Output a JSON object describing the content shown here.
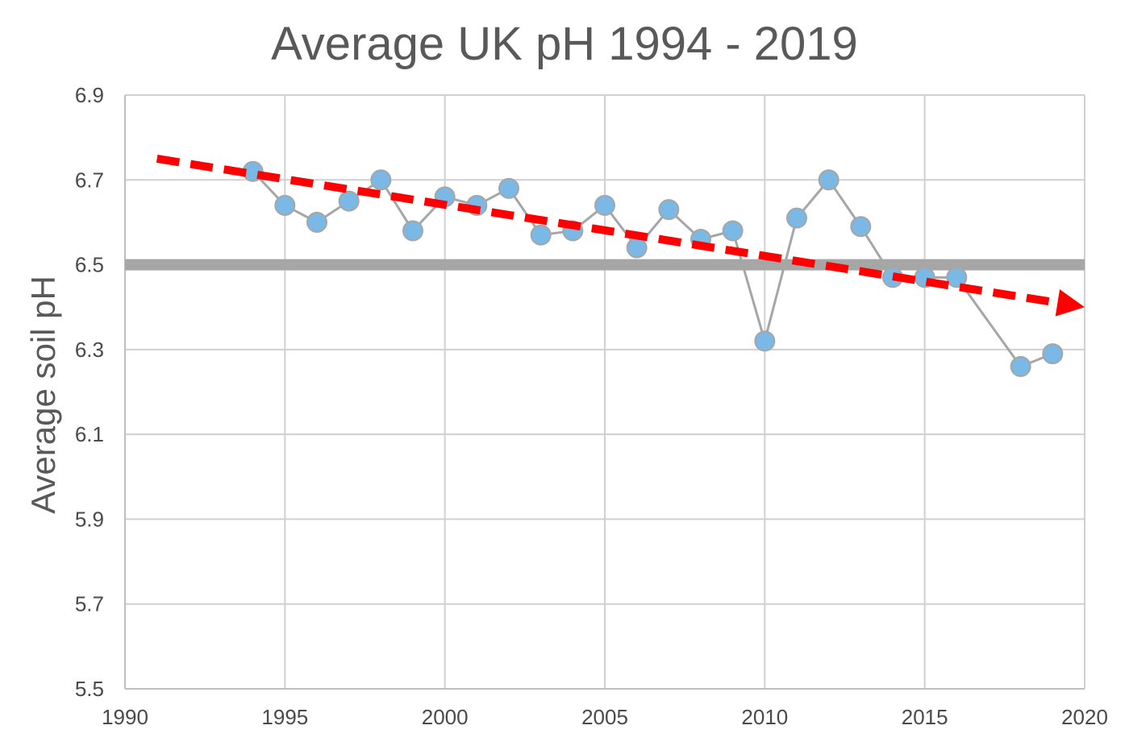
{
  "chart_data": {
    "type": "scatter",
    "title": "Average UK pH 1994 - 2019",
    "xlabel": "",
    "ylabel": "Average soil pH",
    "xlim": [
      1990,
      2020
    ],
    "ylim": [
      5.5,
      6.9
    ],
    "x_ticks": [
      "1990",
      "1995",
      "2000",
      "2005",
      "2010",
      "2015",
      "2020"
    ],
    "y_ticks": [
      "5.5",
      "5.7",
      "5.9",
      "6.1",
      "6.3",
      "6.5",
      "6.7",
      "6.9"
    ],
    "grid": true,
    "reference_line": {
      "y": 6.5,
      "color": "#a6a6a6"
    },
    "trend_line": {
      "x": [
        1991,
        2020
      ],
      "y": [
        6.75,
        6.4
      ],
      "color": "#ff0000",
      "style": "dashed-arrow"
    },
    "series": [
      {
        "x": [
          1994,
          1995,
          1996,
          1997,
          1998,
          1999,
          2000,
          2001,
          2002,
          2003,
          2004,
          2005,
          2006,
          2007,
          2008,
          2009,
          2010,
          2011,
          2012,
          2013,
          2014,
          2015,
          2016,
          2018,
          2019
        ],
        "y": [
          6.72,
          6.64,
          6.6,
          6.65,
          6.7,
          6.58,
          6.66,
          6.64,
          6.68,
          6.57,
          6.58,
          6.64,
          6.54,
          6.63,
          6.56,
          6.58,
          6.32,
          6.61,
          6.7,
          6.59,
          6.47,
          6.47,
          6.47,
          6.26,
          6.29
        ],
        "marker_color": "#7ab8e6",
        "line_color": "#a6a6a6"
      }
    ]
  }
}
